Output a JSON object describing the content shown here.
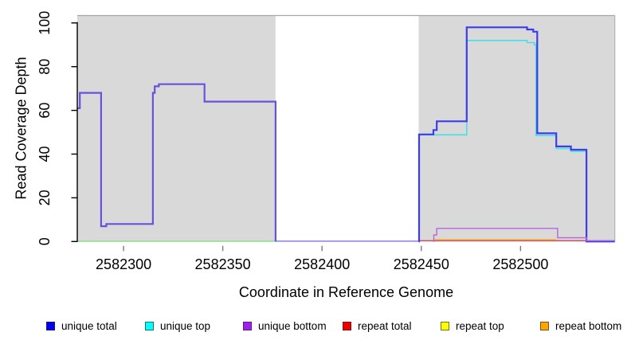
{
  "chart_data": {
    "type": "line-step",
    "title": "",
    "xlabel": "Coordinate in Reference Genome",
    "ylabel": "Read Coverage Depth",
    "x_ticks": [
      2582300,
      2582350,
      2582400,
      2582450,
      2582500
    ],
    "x_tick_labels": [
      "2582300",
      "2582350",
      "2582400",
      "2582450",
      "2582500"
    ],
    "y_ticks": [
      0,
      20,
      40,
      60,
      80,
      100
    ],
    "y_tick_labels": [
      "0",
      "20",
      "40",
      "60",
      "80",
      "100"
    ],
    "xlim": [
      2582276.7,
      2582547.5
    ],
    "ylim": [
      0,
      100
    ],
    "grid": false,
    "legend_position": "bottom",
    "background_regions": [
      {
        "name": "left-shaded-region",
        "x0": 2582276.7,
        "x1": 2582376.6,
        "fill": "#d9d9d9"
      },
      {
        "name": "middle-white-region",
        "x0": 2582376.6,
        "x1": 2582448.7,
        "fill": "#ffffff"
      },
      {
        "name": "right-shaded-region",
        "x0": 2582448.7,
        "x1": 2582547.5,
        "fill": "#d9d9d9"
      }
    ],
    "legend": [
      {
        "label": "unique total",
        "color": "#0000ee"
      },
      {
        "label": "unique top",
        "color": "#00ffff"
      },
      {
        "label": "unique bottom",
        "color": "#a020f0"
      },
      {
        "label": "repeat total",
        "color": "#ee0000"
      },
      {
        "label": "repeat top",
        "color": "#ffff00"
      },
      {
        "label": "repeat bottom",
        "color": "#ffa500"
      }
    ],
    "series": [
      {
        "name": "baseline-left-green",
        "color": "#8fde8f",
        "width": 1.6,
        "points": [
          [
            2582276.7,
            0.15
          ],
          [
            2582376.6,
            0.15
          ]
        ]
      },
      {
        "name": "baseline-middle-periwinkle",
        "color": "#9c95e8",
        "width": 1.8,
        "points": [
          [
            2582376.6,
            0.2
          ],
          [
            2582448.7,
            0.2
          ]
        ]
      },
      {
        "name": "repeat-total",
        "color": "#dd4455",
        "width": 1.3,
        "points": [
          [
            2582449.0,
            0.35
          ],
          [
            2582533.0,
            0.35
          ]
        ]
      },
      {
        "name": "repeat-bottom",
        "color": "#ffa520",
        "width": 1.4,
        "points": [
          [
            2582456.5,
            0.8
          ],
          [
            2582518.0,
            0.8
          ]
        ]
      },
      {
        "name": "unique-top-right",
        "color": "#45e0e5",
        "width": 1.6,
        "points": [
          [
            2582448.7,
            0
          ],
          [
            2582448.9,
            48.8
          ],
          [
            2582472.9,
            92
          ],
          [
            2582503.3,
            91
          ],
          [
            2582507.0,
            90
          ],
          [
            2582507.8,
            48.5
          ],
          [
            2582518.0,
            42.5
          ],
          [
            2582525.4,
            41.2
          ],
          [
            2582533.2,
            0
          ]
        ]
      },
      {
        "name": "unique-total-right",
        "color": "#3b3cea",
        "width": 2.2,
        "points": [
          [
            2582448.7,
            0
          ],
          [
            2582448.9,
            49
          ],
          [
            2582456.1,
            51
          ],
          [
            2582457.8,
            55
          ],
          [
            2582472.9,
            98
          ],
          [
            2582503.3,
            97
          ],
          [
            2582506.4,
            96
          ],
          [
            2582508.4,
            49.5
          ],
          [
            2582518.0,
            43.5
          ],
          [
            2582525.4,
            42
          ],
          [
            2582533.2,
            0
          ],
          [
            2582547.5,
            0
          ]
        ]
      },
      {
        "name": "unique-bottom-right",
        "color": "#b168db",
        "width": 1.4,
        "points": [
          [
            2582456.1,
            0
          ],
          [
            2582456.3,
            3
          ],
          [
            2582457.8,
            6
          ],
          [
            2582518.7,
            1.7
          ],
          [
            2582533.2,
            0.4
          ],
          [
            2582547.5,
            0.4
          ]
        ]
      },
      {
        "name": "unique-total-left",
        "color": "#6a50dc",
        "width": 2.2,
        "points": [
          [
            2582276.7,
            61
          ],
          [
            2582278.0,
            68
          ],
          [
            2582288.7,
            7
          ],
          [
            2582291.3,
            8
          ],
          [
            2582314.8,
            68
          ],
          [
            2582315.7,
            71
          ],
          [
            2582317.8,
            72
          ],
          [
            2582340.8,
            64
          ],
          [
            2582376.6,
            0
          ]
        ]
      }
    ]
  }
}
